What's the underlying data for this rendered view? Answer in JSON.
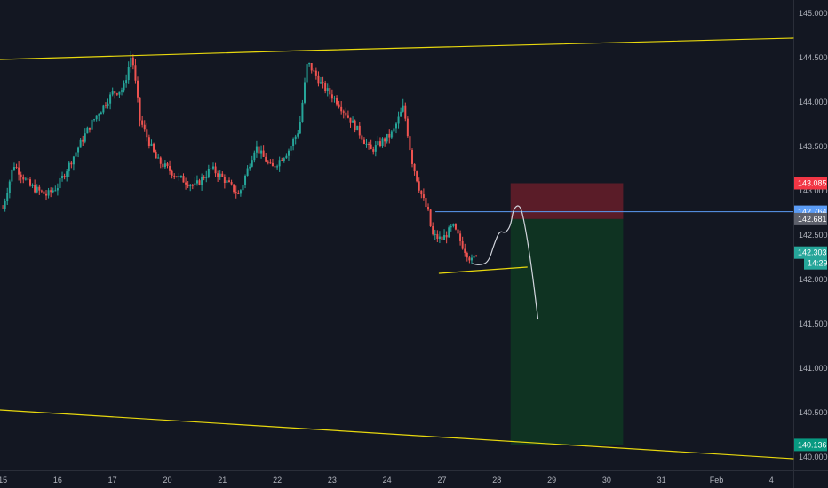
{
  "chart_data": {
    "type": "candlestick",
    "xlabel": "",
    "ylabel": "",
    "x_ticks": [
      "15",
      "16",
      "17",
      "20",
      "21",
      "22",
      "23",
      "24",
      "27",
      "28",
      "29",
      "30",
      "31",
      "Feb",
      "4"
    ],
    "x_tick_days": [
      0,
      1,
      2,
      3,
      4,
      5,
      6,
      7,
      8,
      9,
      10,
      11,
      12,
      13,
      14
    ],
    "y_ticks": [
      "145.000",
      "144.500",
      "144.000",
      "143.500",
      "143.000",
      "142.500",
      "142.000",
      "141.500",
      "141.000",
      "140.500",
      "140.000"
    ],
    "ylim": [
      139.85,
      145.15
    ],
    "xlim": [
      -0.05,
      14.4
    ],
    "candle_days": 9.65,
    "price_anchors": [
      [
        0.0,
        142.8
      ],
      [
        0.2,
        143.3
      ],
      [
        0.5,
        143.05
      ],
      [
        0.8,
        142.95
      ],
      [
        1.0,
        143.05
      ],
      [
        1.3,
        143.4
      ],
      [
        1.6,
        143.75
      ],
      [
        2.0,
        144.1
      ],
      [
        2.2,
        144.15
      ],
      [
        2.35,
        144.55
      ],
      [
        2.5,
        143.8
      ],
      [
        2.8,
        143.35
      ],
      [
        3.2,
        143.15
      ],
      [
        3.5,
        143.05
      ],
      [
        3.8,
        143.25
      ],
      [
        4.0,
        143.15
      ],
      [
        4.3,
        142.95
      ],
      [
        4.6,
        143.5
      ],
      [
        4.9,
        143.25
      ],
      [
        5.2,
        143.45
      ],
      [
        5.4,
        143.7
      ],
      [
        5.55,
        144.45
      ],
      [
        5.8,
        144.2
      ],
      [
        6.1,
        144.0
      ],
      [
        6.5,
        143.65
      ],
      [
        6.7,
        143.45
      ],
      [
        6.9,
        143.55
      ],
      [
        7.1,
        143.65
      ],
      [
        7.3,
        143.95
      ],
      [
        7.45,
        143.35
      ],
      [
        7.6,
        143.0
      ],
      [
        7.75,
        142.75
      ],
      [
        7.82,
        142.5
      ],
      [
        8.0,
        142.45
      ],
      [
        8.2,
        142.6
      ],
      [
        8.4,
        142.35
      ],
      [
        8.55,
        142.2
      ],
      [
        8.62,
        142.3
      ]
    ],
    "annotations": {
      "channel_upper": [
        [
          -0.05,
          144.48
        ],
        [
          5.5,
          144.58
        ],
        [
          14.4,
          144.72
        ]
      ],
      "channel_lower": [
        [
          -0.05,
          140.53
        ],
        [
          14.4,
          139.98
        ]
      ],
      "support_line": [
        [
          7.95,
          142.07
        ],
        [
          9.55,
          142.14
        ]
      ],
      "resistance_level": 142.764,
      "projection": [
        [
          8.55,
          142.18
        ],
        [
          8.7,
          142.16
        ],
        [
          8.85,
          142.2
        ],
        [
          8.95,
          142.4
        ],
        [
          9.05,
          142.55
        ],
        [
          9.15,
          142.52
        ],
        [
          9.25,
          142.6
        ],
        [
          9.3,
          142.8
        ],
        [
          9.42,
          142.85
        ],
        [
          9.5,
          142.65
        ],
        [
          9.62,
          142.2
        ],
        [
          9.75,
          141.55
        ]
      ],
      "position": {
        "x_start": 9.25,
        "x_end": 11.3,
        "stop": 143.085,
        "entry": 142.681,
        "target": 140.136
      }
    },
    "price_labels": [
      {
        "text": "143.085",
        "value": 143.085,
        "color": "#f23645"
      },
      {
        "text": "142.764",
        "value": 142.764,
        "color": "#5b9cf6"
      },
      {
        "text": "142.681",
        "value": 142.681,
        "color": "#5d606b"
      },
      {
        "text": "142.303",
        "value": 142.303,
        "color": "#26a69a"
      },
      {
        "text": "14:29",
        "value": 142.183,
        "color": "#26a69a"
      },
      {
        "text": "140.136",
        "value": 140.136,
        "color": "#089981"
      }
    ],
    "colors": {
      "background": "#131722",
      "up": "#26a69a",
      "down": "#ef5350",
      "trendline": "#e8d80e",
      "level": "#5b9cf6",
      "projection": "#d1d4dc",
      "stop_zone": "#5a1c28",
      "target_zone": "#0f3322",
      "axis_text": "#b2b5be"
    }
  }
}
